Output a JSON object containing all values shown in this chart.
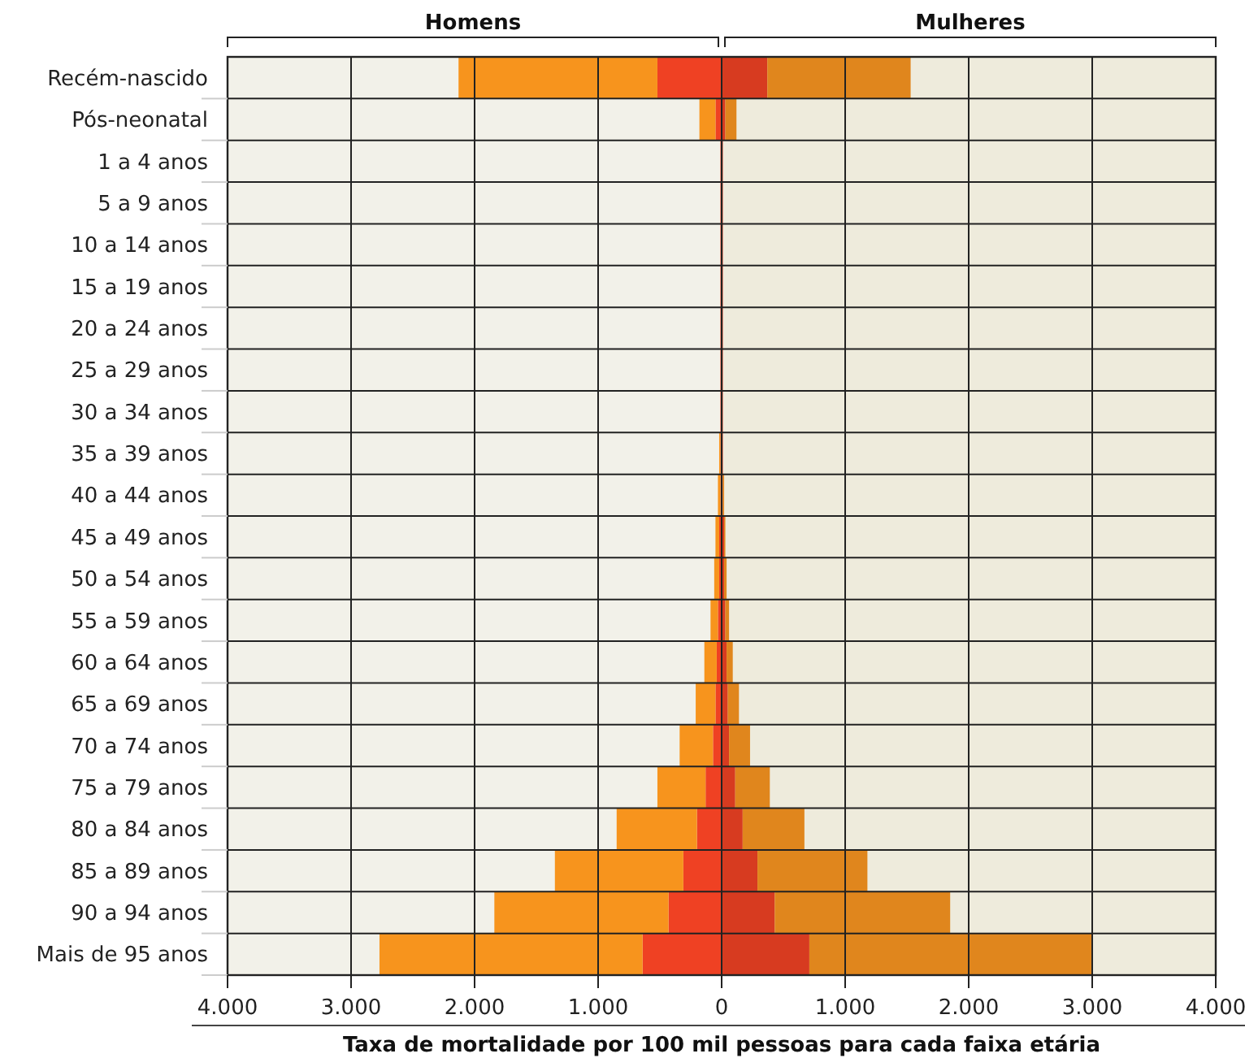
{
  "chart_data": {
    "type": "bar",
    "orientation": "horizontal",
    "xlabel": "Taxa de mortalidade por 100 mil pessoas para cada faixa etária",
    "annotations": [
      "Homens",
      "Mulheres"
    ],
    "categories": [
      "Recém-nascido",
      "Pós-neonatal",
      "1 a 4 anos",
      "5 a 9 anos",
      "10 a 14 anos",
      "15 a 19 anos",
      "20 a 24 anos",
      "25 a 29 anos",
      "30 a 34 anos",
      "35 a 39 anos",
      "40 a 44 anos",
      "45 a 49 anos",
      "50 a 54 anos",
      "55 a 59 anos",
      "60 a 64 anos",
      "65 a 69 anos",
      "70 a 74 anos",
      "75 a 79 anos",
      "80 a 84 anos",
      "85 a 89 anos",
      "90 a 94 anos",
      "Mais de 95 anos"
    ],
    "series": [
      {
        "color": "#ef4123",
        "values": [
          -520,
          -50,
          -10,
          -10,
          -10,
          -10,
          -10,
          -10,
          -10,
          -10,
          -10,
          -20,
          -20,
          -30,
          -40,
          -50,
          -70,
          -130,
          -200,
          -310,
          -430,
          -640
        ]
      },
      {
        "color": "#f7941d",
        "values": [
          -1610,
          -130,
          0,
          0,
          0,
          0,
          0,
          0,
          0,
          -10,
          -20,
          -30,
          -40,
          -60,
          -100,
          -160,
          -270,
          -390,
          -650,
          -1040,
          -1410,
          -2130
        ]
      },
      {
        "color": "#d73b20",
        "values": [
          370,
          30,
          10,
          10,
          10,
          10,
          10,
          10,
          10,
          10,
          10,
          20,
          20,
          30,
          40,
          50,
          60,
          110,
          170,
          290,
          430,
          710
        ]
      },
      {
        "color": "#e0861d",
        "values": [
          1160,
          90,
          0,
          0,
          0,
          0,
          0,
          0,
          0,
          0,
          10,
          10,
          20,
          30,
          50,
          90,
          170,
          280,
          500,
          890,
          1420,
          2290
        ]
      }
    ],
    "stacked": true,
    "bands": [
      {
        "axis": "x",
        "from": -4000,
        "to": 0,
        "color": "#f2f1e9"
      },
      {
        "axis": "x",
        "from": 0,
        "to": 4000,
        "color": "#eeebdc"
      }
    ],
    "xlim": [
      -4000,
      4000
    ],
    "xticks": [
      {
        "value": -4000,
        "label": "4.000"
      },
      {
        "value": -3000,
        "label": "3.000"
      },
      {
        "value": -2000,
        "label": "2.000"
      },
      {
        "value": -1000,
        "label": "1.000"
      },
      0,
      {
        "value": 1000,
        "label": "1.000"
      },
      {
        "value": 2000,
        "label": "2.000"
      },
      {
        "value": 3000,
        "label": "3.000"
      },
      {
        "value": 4000,
        "label": "4.000"
      }
    ],
    "grid": true
  }
}
